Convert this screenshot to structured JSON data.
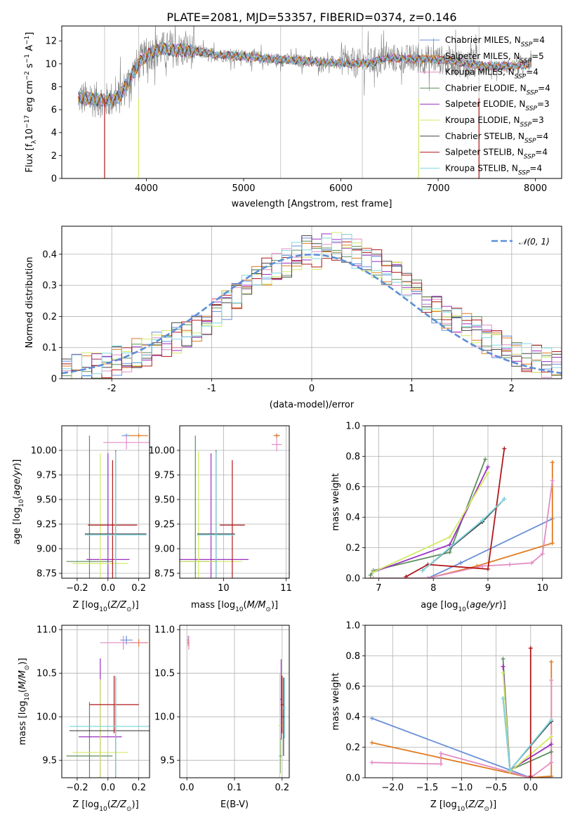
{
  "figure": {
    "title": "PLATE=2081, MJD=53357, FIBERID=0374, z=0.146"
  },
  "colors": {
    "Chabrier MILES": "#6a8fd8",
    "Salpeter MILES": "#e07b1f",
    "Kroupa MILES": "#e38bc4",
    "Chabrier ELODIE": "#5e8e5e",
    "Salpeter ELODIE": "#9b2fc0",
    "Kroupa ELODIE": "#d2ea64",
    "Chabrier STELIB": "#444444",
    "Salpeter STELIB": "#b0181a",
    "Kroupa STELIB": "#7fd8e2",
    "data": "#808080",
    "normal": "#5b8fd6",
    "grid": "#b0b0b0"
  },
  "legend": [
    {
      "key": "Chabrier MILES",
      "text": "Chabrier MILES, N",
      "sub": "SSP",
      "post": "=4"
    },
    {
      "key": "Salpeter MILES",
      "text": "Salpeter MILES, N",
      "sub": "SSP",
      "post": "=5"
    },
    {
      "key": "Kroupa MILES",
      "text": "Kroupa MILES, N",
      "sub": "SSP",
      "post": "=4"
    },
    {
      "key": "Chabrier ELODIE",
      "text": "Chabrier ELODIE, N",
      "sub": "SSP",
      "post": "=4"
    },
    {
      "key": "Salpeter ELODIE",
      "text": "Salpeter ELODIE, N",
      "sub": "SSP",
      "post": "=3"
    },
    {
      "key": "Kroupa ELODIE",
      "text": "Kroupa ELODIE, N",
      "sub": "SSP",
      "post": "=3"
    },
    {
      "key": "Chabrier STELIB",
      "text": "Chabrier STELIB, N",
      "sub": "SSP",
      "post": "=4"
    },
    {
      "key": "Salpeter STELIB",
      "text": "Salpeter STELIB, N",
      "sub": "SSP",
      "post": "=4"
    },
    {
      "key": "Kroupa STELIB",
      "text": "Kroupa STELIB, N",
      "sub": "SSP",
      "post": "=4"
    }
  ],
  "chart_data": [
    {
      "id": "spectrum",
      "type": "line",
      "title": "PLATE=2081, MJD=53357, FIBERID=0374, z=0.146",
      "xlabel": "wavelength [Angstrom, rest frame]",
      "ylabel": "Flux [f_λ 10^-17 erg cm^-2 s^-1 A^-1]",
      "xlim": [
        3130,
        8270
      ],
      "ylim": [
        0,
        13.3
      ],
      "xticks": [
        4000,
        5000,
        6000,
        7000,
        8000
      ],
      "yticks": [
        0,
        2,
        4,
        6,
        8,
        10,
        12
      ],
      "grid": false,
      "legend_position": "right",
      "continuum": [
        [
          3300,
          7.0
        ],
        [
          3450,
          6.9
        ],
        [
          3600,
          6.8
        ],
        [
          3720,
          7.1
        ],
        [
          3800,
          8.2
        ],
        [
          3880,
          9.5
        ],
        [
          3950,
          10.3
        ],
        [
          4050,
          11.0
        ],
        [
          4150,
          11.3
        ],
        [
          4300,
          11.2
        ],
        [
          4500,
          11.1
        ],
        [
          4700,
          10.8
        ],
        [
          4900,
          10.7
        ],
        [
          5100,
          10.6
        ],
        [
          5300,
          10.4
        ],
        [
          5500,
          10.3
        ],
        [
          5700,
          10.2
        ],
        [
          5900,
          10.1
        ],
        [
          6100,
          10.0
        ],
        [
          6300,
          10.1
        ],
        [
          6500,
          10.5
        ],
        [
          6700,
          10.4
        ],
        [
          6900,
          10.4
        ],
        [
          7100,
          10.3
        ],
        [
          7300,
          10.0
        ],
        [
          7500,
          9.8
        ],
        [
          7700,
          9.8
        ],
        [
          7900,
          9.9
        ]
      ],
      "masked_lines": [
        3570,
        3920,
        5380,
        6220,
        6800,
        7420
      ]
    },
    {
      "id": "residuals",
      "type": "line",
      "xlabel": "(data-model)/error",
      "ylabel": "Normed distribution",
      "xlim": [
        -2.5,
        2.5
      ],
      "ylim": [
        0,
        0.49
      ],
      "xticks": [
        -2,
        -1,
        0,
        1,
        2
      ],
      "yticks": [
        0,
        0.1,
        0.2,
        0.3,
        0.4
      ],
      "grid": true,
      "legend_position": "top-right",
      "legend": [
        {
          "name": "𝒩(0, 1)",
          "style": "dashed"
        }
      ],
      "hist_bins": [
        -2.5,
        2.5,
        50
      ],
      "envelope": [
        0.025,
        0.03,
        0.035,
        0.04,
        0.05,
        0.06,
        0.07,
        0.08,
        0.09,
        0.1,
        0.11,
        0.13,
        0.14,
        0.16,
        0.18,
        0.21,
        0.24,
        0.26,
        0.31,
        0.33,
        0.34,
        0.36,
        0.37,
        0.4,
        0.41,
        0.4,
        0.42,
        0.43,
        0.42,
        0.4,
        0.39,
        0.37,
        0.35,
        0.33,
        0.3,
        0.28,
        0.25,
        0.22,
        0.2,
        0.18,
        0.17,
        0.15,
        0.13,
        0.11,
        0.1,
        0.08,
        0.07,
        0.06,
        0.05,
        0.04
      ]
    },
    {
      "id": "age-vs-Z",
      "type": "scatter",
      "xlabel": "Z [log10(Z/Z☉)]",
      "ylabel": "age  [log10(age/yr)]",
      "xlim": [
        -0.3,
        0.27
      ],
      "ylim": [
        8.7,
        10.25
      ],
      "xticks": [
        -0.2,
        0.0,
        0.2
      ],
      "xticklabels": [
        "−0.2",
        "0.0",
        "0.2"
      ],
      "yticks": [
        8.75,
        9.0,
        9.25,
        9.5,
        9.75,
        10.0
      ],
      "yticklabels": [
        "8.75",
        "9.00",
        "9.25",
        "9.50",
        "9.75",
        "10.00"
      ],
      "grid": true,
      "points": [
        {
          "series": "Chabrier MILES",
          "x": 0.12,
          "xerr": 0.03,
          "y": 10.15,
          "yerr": 0.02
        },
        {
          "series": "Salpeter MILES",
          "x": 0.2,
          "xerr": 0.06,
          "y": 10.15,
          "yerr": 0.02
        },
        {
          "series": "Kroupa MILES",
          "x": 0.12,
          "xerr": 0.15,
          "y": 10.08,
          "yerr": 0.07
        },
        {
          "series": "Chabrier ELODIE",
          "x": -0.12,
          "xerr": 0.15,
          "y": 8.87,
          "yerr": 1.28
        },
        {
          "series": "Salpeter ELODIE",
          "x": 0.0,
          "xerr": 0.14,
          "y": 8.89,
          "yerr": 1.08
        },
        {
          "series": "Kroupa ELODIE",
          "x": -0.05,
          "xerr": 0.18,
          "y": 8.85,
          "yerr": 1.12
        },
        {
          "series": "Chabrier STELIB",
          "x": 0.05,
          "xerr": 0.2,
          "y": 9.15,
          "yerr": 0.85
        },
        {
          "series": "Salpeter STELIB",
          "x": 0.03,
          "xerr": 0.16,
          "y": 9.24,
          "yerr": 0.66
        },
        {
          "series": "Kroupa STELIB",
          "x": 0.05,
          "xerr": 0.2,
          "y": 9.14,
          "yerr": 0.85
        }
      ]
    },
    {
      "id": "age-vs-mass",
      "type": "scatter",
      "xlabel": "mass [log10(M/M☉)]",
      "ylabel": "",
      "xlim": [
        9.3,
        11.05
      ],
      "ylim": [
        8.7,
        10.25
      ],
      "xticks": [
        10,
        11
      ],
      "yticks": [
        8.75,
        9.0,
        9.25,
        9.5,
        9.75,
        10.0
      ],
      "yticklabels": [
        "8.75",
        "9.00",
        "9.25",
        "9.50",
        "9.75",
        "10.00"
      ],
      "grid": true,
      "points": [
        {
          "series": "Chabrier MILES",
          "x": 10.85,
          "xerr": 0.05,
          "y": 10.15,
          "yerr": 0.02
        },
        {
          "series": "Salpeter MILES",
          "x": 10.85,
          "xerr": 0.05,
          "y": 10.15,
          "yerr": 0.02
        },
        {
          "series": "Kroupa MILES",
          "x": 10.85,
          "xerr": 0.08,
          "y": 10.06,
          "yerr": 0.07
        },
        {
          "series": "Chabrier ELODIE",
          "x": 9.55,
          "xerr": 0.35,
          "y": 8.87,
          "yerr": 1.28
        },
        {
          "series": "Salpeter ELODIE",
          "x": 9.8,
          "xerr": 0.6,
          "y": 8.89,
          "yerr": 1.08
        },
        {
          "series": "Kroupa ELODIE",
          "x": 9.6,
          "xerr": 0.7,
          "y": 8.87,
          "yerr": 1.12
        },
        {
          "series": "Chabrier STELIB",
          "x": 9.88,
          "xerr": 0.3,
          "y": 9.15,
          "yerr": 0.85
        },
        {
          "series": "Salpeter STELIB",
          "x": 10.14,
          "xerr": 0.2,
          "y": 9.24,
          "yerr": 0.66
        },
        {
          "series": "Kroupa STELIB",
          "x": 9.88,
          "xerr": 0.3,
          "y": 9.14,
          "yerr": 0.85
        }
      ]
    },
    {
      "id": "weight-vs-age",
      "type": "line",
      "xlabel": "age  [log10(age/yr)]",
      "ylabel": "mass weight",
      "xlim": [
        6.75,
        10.35
      ],
      "ylim": [
        0,
        1.0
      ],
      "xticks": [
        7,
        8,
        9,
        10
      ],
      "yticks": [
        0,
        0.2,
        0.4,
        0.6,
        0.8,
        1.0
      ],
      "yticklabels": [
        "0.0",
        "0.2",
        "0.4",
        "0.6",
        "0.8",
        "1.0"
      ],
      "grid": true,
      "series": [
        {
          "name": "Chabrier MILES",
          "x": [
            6.85,
            7.9,
            8.5,
            10.18
          ],
          "y": [
            0.0,
            0.0,
            0.1,
            0.39
          ]
        },
        {
          "name": "Salpeter MILES",
          "x": [
            6.85,
            7.9,
            8.8,
            10.18,
            10.18
          ],
          "y": [
            0.0,
            0.0,
            0.08,
            0.23,
            0.76
          ]
        },
        {
          "name": "Kroupa MILES",
          "x": [
            6.9,
            7.9,
            8.9,
            9.4,
            9.8,
            10.0,
            10.18
          ],
          "y": [
            0.0,
            0.0,
            0.08,
            0.09,
            0.1,
            0.16,
            0.64
          ]
        },
        {
          "name": "Chabrier ELODIE",
          "x": [
            6.85,
            6.9,
            8.3,
            8.95
          ],
          "y": [
            0.02,
            0.05,
            0.17,
            0.78
          ]
        },
        {
          "name": "Salpeter ELODIE",
          "x": [
            6.9,
            8.3,
            9.0
          ],
          "y": [
            0.04,
            0.22,
            0.73
          ]
        },
        {
          "name": "Kroupa ELODIE",
          "x": [
            6.9,
            8.3,
            9.0
          ],
          "y": [
            0.04,
            0.27,
            0.69
          ]
        },
        {
          "name": "Chabrier STELIB",
          "x": [
            7.8,
            8.9,
            9.3
          ],
          "y": [
            0.05,
            0.37,
            0.52
          ]
        },
        {
          "name": "Salpeter STELIB",
          "x": [
            7.5,
            7.9,
            9.0,
            9.3
          ],
          "y": [
            0.01,
            0.09,
            0.06,
            0.85
          ]
        },
        {
          "name": "Kroupa STELIB",
          "x": [
            7.8,
            8.9,
            9.3
          ],
          "y": [
            0.05,
            0.38,
            0.52
          ]
        }
      ]
    },
    {
      "id": "mass-vs-Z",
      "type": "scatter",
      "xlabel": "Z [log10(Z/Z☉)]",
      "ylabel": "mass [log10(M/M☉)]",
      "xlim": [
        -0.3,
        0.27
      ],
      "ylim": [
        9.3,
        11.05
      ],
      "xticks": [
        -0.2,
        0.0,
        0.2
      ],
      "xticklabels": [
        "−0.2",
        "0.0",
        "0.2"
      ],
      "yticks": [
        9.5,
        10.0,
        10.5,
        11.0
      ],
      "yticklabels": [
        "9.5",
        "10.0",
        "10.5",
        "11.0"
      ],
      "grid": true,
      "points": [
        {
          "series": "Chabrier MILES",
          "x": 0.12,
          "xerr": 0.04,
          "y": 10.88,
          "yerr": 0.05
        },
        {
          "series": "Salpeter MILES",
          "x": 0.2,
          "xerr": 0.06,
          "y": 10.85,
          "yerr": 0.04
        },
        {
          "series": "Kroupa MILES",
          "x": 0.1,
          "xerr": 0.15,
          "y": 10.85,
          "yerr": 0.08
        },
        {
          "series": "Chabrier ELODIE",
          "x": -0.12,
          "xerr": 0.15,
          "y": 9.55,
          "yerr": 0.62
        },
        {
          "series": "Salpeter ELODIE",
          "x": -0.05,
          "xerr": 0.14,
          "y": 9.77,
          "yerr": 0.9
        },
        {
          "series": "Kroupa ELODIE",
          "x": -0.05,
          "xerr": 0.18,
          "y": 9.59,
          "yerr": 0.84
        },
        {
          "series": "Chabrier STELIB",
          "x": 0.05,
          "xerr": 0.3,
          "y": 9.84,
          "yerr": 0.61
        },
        {
          "series": "Salpeter STELIB",
          "x": 0.04,
          "xerr": 0.16,
          "y": 10.14,
          "yerr": 0.33
        },
        {
          "series": "Kroupa STELIB",
          "x": 0.05,
          "xerr": 0.3,
          "y": 9.89,
          "yerr": 0.58
        }
      ]
    },
    {
      "id": "mass-vs-EBV",
      "type": "scatter",
      "xlabel": "E(B-V)",
      "ylabel": "",
      "xlim": [
        -0.015,
        0.215
      ],
      "ylim": [
        9.3,
        11.05
      ],
      "xticks": [
        0.0,
        0.1,
        0.2
      ],
      "xticklabels": [
        "0.0",
        "0.1",
        "0.2"
      ],
      "yticks": [
        9.5,
        10.0,
        10.5,
        11.0
      ],
      "yticklabels": [
        "9.5",
        "10.0",
        "10.5",
        "11.0"
      ],
      "grid": true,
      "points": [
        {
          "series": "Chabrier MILES",
          "x": 0.003,
          "xerr": 0.002,
          "y": 10.88,
          "yerr": 0.05
        },
        {
          "series": "Salpeter MILES",
          "x": 0.003,
          "xerr": 0.002,
          "y": 10.85,
          "yerr": 0.04
        },
        {
          "series": "Kroupa MILES",
          "x": 0.004,
          "xerr": 0.002,
          "y": 10.85,
          "yerr": 0.08
        },
        {
          "series": "Chabrier ELODIE",
          "x": 0.196,
          "xerr": 0.003,
          "y": 9.55,
          "yerr": 0.2
        },
        {
          "series": "Salpeter ELODIE",
          "x": 0.198,
          "xerr": 0.003,
          "y": 10.2,
          "yerr": 0.46
        },
        {
          "series": "Kroupa ELODIE",
          "x": 0.195,
          "xerr": 0.003,
          "y": 9.9,
          "yerr": 0.6
        },
        {
          "series": "Chabrier STELIB",
          "x": 0.203,
          "xerr": 0.003,
          "y": 10.0,
          "yerr": 0.45
        },
        {
          "series": "Salpeter STELIB",
          "x": 0.2,
          "xerr": 0.003,
          "y": 10.14,
          "yerr": 0.33
        },
        {
          "series": "Kroupa STELIB",
          "x": 0.205,
          "xerr": 0.003,
          "y": 10.1,
          "yerr": 0.35
        }
      ]
    },
    {
      "id": "weight-vs-Z",
      "type": "line",
      "xlabel": "Z [log10(Z/Z☉)]",
      "ylabel": "mass weight",
      "xlim": [
        -2.4,
        0.45
      ],
      "ylim": [
        0,
        1.0
      ],
      "xticks": [
        -2.0,
        -1.5,
        -1.0,
        -0.5,
        0.0
      ],
      "xticklabels": [
        "−2.0",
        "−1.5",
        "−1.0",
        "−0.5",
        "0.0"
      ],
      "yticks": [
        0,
        0.2,
        0.4,
        0.6,
        0.8,
        1.0
      ],
      "yticklabels": [
        "0.0",
        "0.2",
        "0.4",
        "0.6",
        "0.8",
        "1.0"
      ],
      "grid": true,
      "series": [
        {
          "name": "Chabrier MILES",
          "x": [
            -2.3,
            0.0,
            0.3
          ],
          "y": [
            0.39,
            0.0,
            0.0
          ]
        },
        {
          "name": "Salpeter MILES",
          "x": [
            -2.3,
            -1.3,
            0.0,
            0.3,
            0.3
          ],
          "y": [
            0.23,
            0.13,
            0.0,
            0.01,
            0.76
          ]
        },
        {
          "name": "Kroupa MILES",
          "x": [
            -2.3,
            -1.3,
            -1.3,
            0.0,
            0.3,
            0.3
          ],
          "y": [
            0.1,
            0.09,
            0.16,
            0.0,
            0.1,
            0.64
          ]
        },
        {
          "name": "Chabrier ELODIE",
          "x": [
            -0.4,
            -0.3,
            0.3
          ],
          "y": [
            0.78,
            0.05,
            0.17
          ]
        },
        {
          "name": "Salpeter ELODIE",
          "x": [
            -0.4,
            -0.3,
            0.3
          ],
          "y": [
            0.73,
            0.05,
            0.22
          ]
        },
        {
          "name": "Kroupa ELODIE",
          "x": [
            -0.4,
            -0.3,
            0.3
          ],
          "y": [
            0.69,
            0.04,
            0.27
          ]
        },
        {
          "name": "Chabrier STELIB",
          "x": [
            -0.4,
            -0.3,
            0.3
          ],
          "y": [
            0.52,
            0.05,
            0.37
          ]
        },
        {
          "name": "Salpeter STELIB",
          "x": [
            0.0,
            0.0,
            0.0
          ],
          "y": [
            0.85,
            0.0,
            0.01
          ]
        },
        {
          "name": "Kroupa STELIB",
          "x": [
            -0.4,
            -0.3,
            0.3
          ],
          "y": [
            0.52,
            0.05,
            0.38
          ]
        }
      ]
    }
  ]
}
